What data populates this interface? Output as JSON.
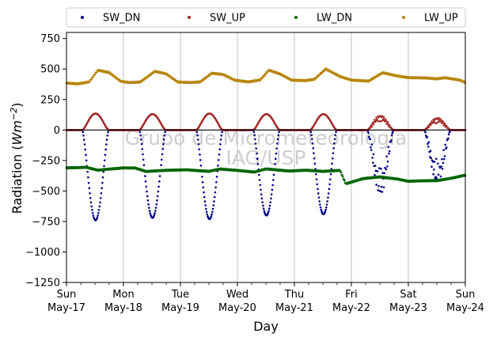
{
  "chart_data": {
    "type": "scatter",
    "title": "",
    "xlabel": "Day",
    "ylabel_main": "Radiation (",
    "ylabel_unit_base": "Wm",
    "ylabel_unit_exp": "−2",
    "ylabel_close": ")",
    "ylim": [
      -1250,
      800
    ],
    "yticks": [
      {
        "value": 750,
        "label": "750"
      },
      {
        "value": 500,
        "label": "500"
      },
      {
        "value": 250,
        "label": "250"
      },
      {
        "value": 0,
        "label": "0"
      },
      {
        "value": -250,
        "label": "−250"
      },
      {
        "value": -500,
        "label": "−500"
      },
      {
        "value": -750,
        "label": "−750"
      },
      {
        "value": -1000,
        "label": "−1000"
      },
      {
        "value": -1250,
        "label": "−1250"
      }
    ],
    "xrange_days": [
      0,
      7
    ],
    "xticks": [
      {
        "day": 0,
        "line1": "Sun",
        "line2": "May-17"
      },
      {
        "day": 1,
        "line1": "Mon",
        "line2": "May-18"
      },
      {
        "day": 2,
        "line1": "Tue",
        "line2": "May-19"
      },
      {
        "day": 3,
        "line1": "Wed",
        "line2": "May-20"
      },
      {
        "day": 4,
        "line1": "Thu",
        "line2": "May-21"
      },
      {
        "day": 5,
        "line1": "Fri",
        "line2": "May-22"
      },
      {
        "day": 6,
        "line1": "Sat",
        "line2": "May-23"
      },
      {
        "day": 7,
        "line1": "Sun",
        "line2": "May-24"
      }
    ],
    "grid": "vertical",
    "zero_line": true,
    "legend_position": "top",
    "watermark": [
      "Grupo de Micrometeorologia",
      "IAG/USP"
    ],
    "series": [
      {
        "name": "SW_DN",
        "color": "#00008b",
        "nights_value": 0,
        "daily_min": [
          -740,
          -720,
          -730,
          -700,
          -690,
          -530,
          -430
        ]
      },
      {
        "name": "SW_UP",
        "color": "#a52a2a",
        "nights_value": 0,
        "daily_max": [
          135,
          130,
          135,
          130,
          130,
          120,
          100
        ]
      },
      {
        "name": "LW_DN",
        "color": "#006400",
        "points": [
          [
            0,
            -310
          ],
          [
            0.35,
            -305
          ],
          [
            0.55,
            -330
          ],
          [
            0.9,
            -315
          ],
          [
            1.0,
            -310
          ],
          [
            1.2,
            -310
          ],
          [
            1.4,
            -340
          ],
          [
            1.8,
            -330
          ],
          [
            2.1,
            -325
          ],
          [
            2.5,
            -340
          ],
          [
            2.7,
            -320
          ],
          [
            3.0,
            -330
          ],
          [
            3.3,
            -345
          ],
          [
            3.5,
            -320
          ],
          [
            3.9,
            -335
          ],
          [
            4.2,
            -330
          ],
          [
            4.5,
            -340
          ],
          [
            4.8,
            -330
          ],
          [
            4.9,
            -440
          ],
          [
            5.2,
            -400
          ],
          [
            5.5,
            -385
          ],
          [
            5.8,
            -400
          ],
          [
            6.0,
            -420
          ],
          [
            6.5,
            -415
          ],
          [
            6.8,
            -390
          ],
          [
            7.0,
            -370
          ]
        ]
      },
      {
        "name": "LW_UP",
        "color": "#b8860b",
        "points": [
          [
            0,
            385
          ],
          [
            0.2,
            380
          ],
          [
            0.4,
            395
          ],
          [
            0.55,
            490
          ],
          [
            0.75,
            470
          ],
          [
            0.95,
            400
          ],
          [
            1.1,
            390
          ],
          [
            1.3,
            395
          ],
          [
            1.55,
            480
          ],
          [
            1.75,
            460
          ],
          [
            1.95,
            395
          ],
          [
            2.2,
            390
          ],
          [
            2.35,
            395
          ],
          [
            2.55,
            465
          ],
          [
            2.75,
            455
          ],
          [
            2.95,
            410
          ],
          [
            3.2,
            395
          ],
          [
            3.4,
            410
          ],
          [
            3.55,
            490
          ],
          [
            3.75,
            460
          ],
          [
            3.95,
            410
          ],
          [
            4.2,
            405
          ],
          [
            4.35,
            415
          ],
          [
            4.55,
            500
          ],
          [
            4.8,
            440
          ],
          [
            5.0,
            410
          ],
          [
            5.3,
            400
          ],
          [
            5.55,
            470
          ],
          [
            5.8,
            445
          ],
          [
            6.0,
            430
          ],
          [
            6.35,
            425
          ],
          [
            6.5,
            420
          ],
          [
            6.65,
            430
          ],
          [
            6.9,
            410
          ],
          [
            7.0,
            390
          ]
        ]
      }
    ]
  }
}
